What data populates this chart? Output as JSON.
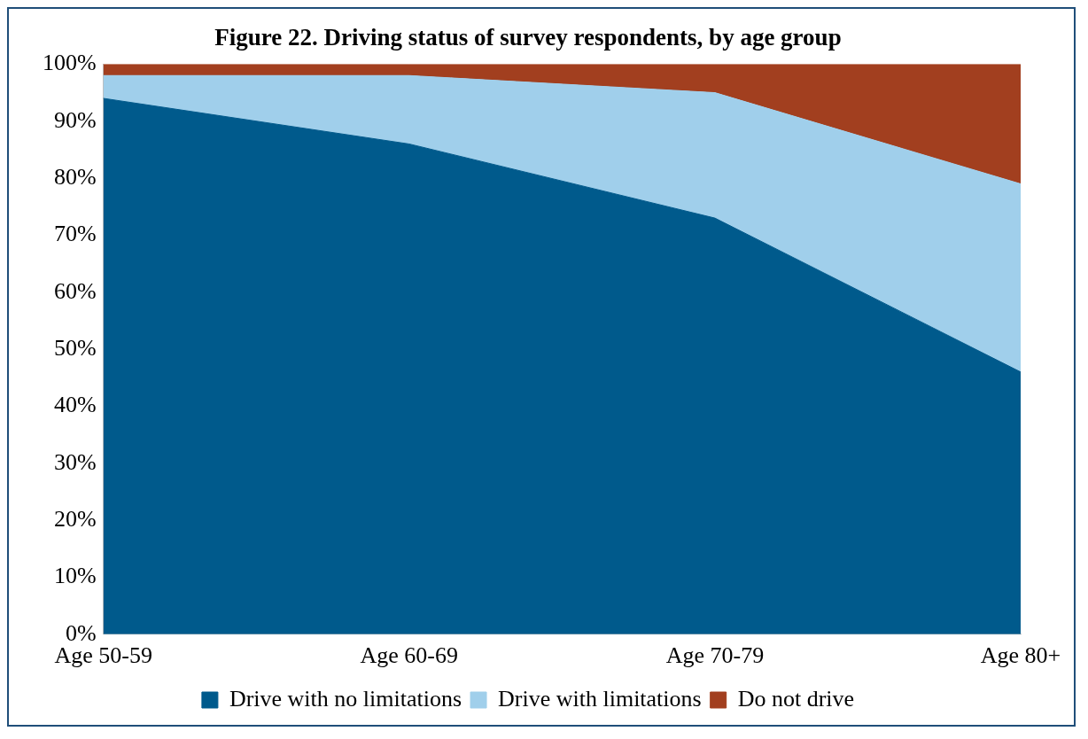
{
  "chart_data": {
    "type": "area",
    "title": "Figure 22. Driving status of survey respondents, by age group",
    "categories": [
      "Age 50-59",
      "Age 60-69",
      "Age 70-79",
      "Age 80+"
    ],
    "stacked": true,
    "series": [
      {
        "name": "Drive with no limitations",
        "color": "#005a8c",
        "values": [
          94,
          86,
          73,
          46
        ]
      },
      {
        "name": "Drive with limitations",
        "color": "#a0cfeb",
        "values": [
          4,
          12,
          22,
          33
        ]
      },
      {
        "name": "Do not drive",
        "color": "#a23f1f",
        "values": [
          2,
          2,
          5,
          21
        ]
      }
    ],
    "ylim": [
      0,
      100
    ],
    "yticks": [
      {
        "value": 0,
        "label": "0%"
      },
      {
        "value": 10,
        "label": "10%"
      },
      {
        "value": 20,
        "label": "20%"
      },
      {
        "value": 30,
        "label": "30%"
      },
      {
        "value": 40,
        "label": "40%"
      },
      {
        "value": 50,
        "label": "50%"
      },
      {
        "value": 60,
        "label": "60%"
      },
      {
        "value": 70,
        "label": "70%"
      },
      {
        "value": 80,
        "label": "80%"
      },
      {
        "value": 90,
        "label": "90%"
      },
      {
        "value": 100,
        "label": "100%"
      }
    ],
    "grid": false,
    "legend": "bottom"
  }
}
